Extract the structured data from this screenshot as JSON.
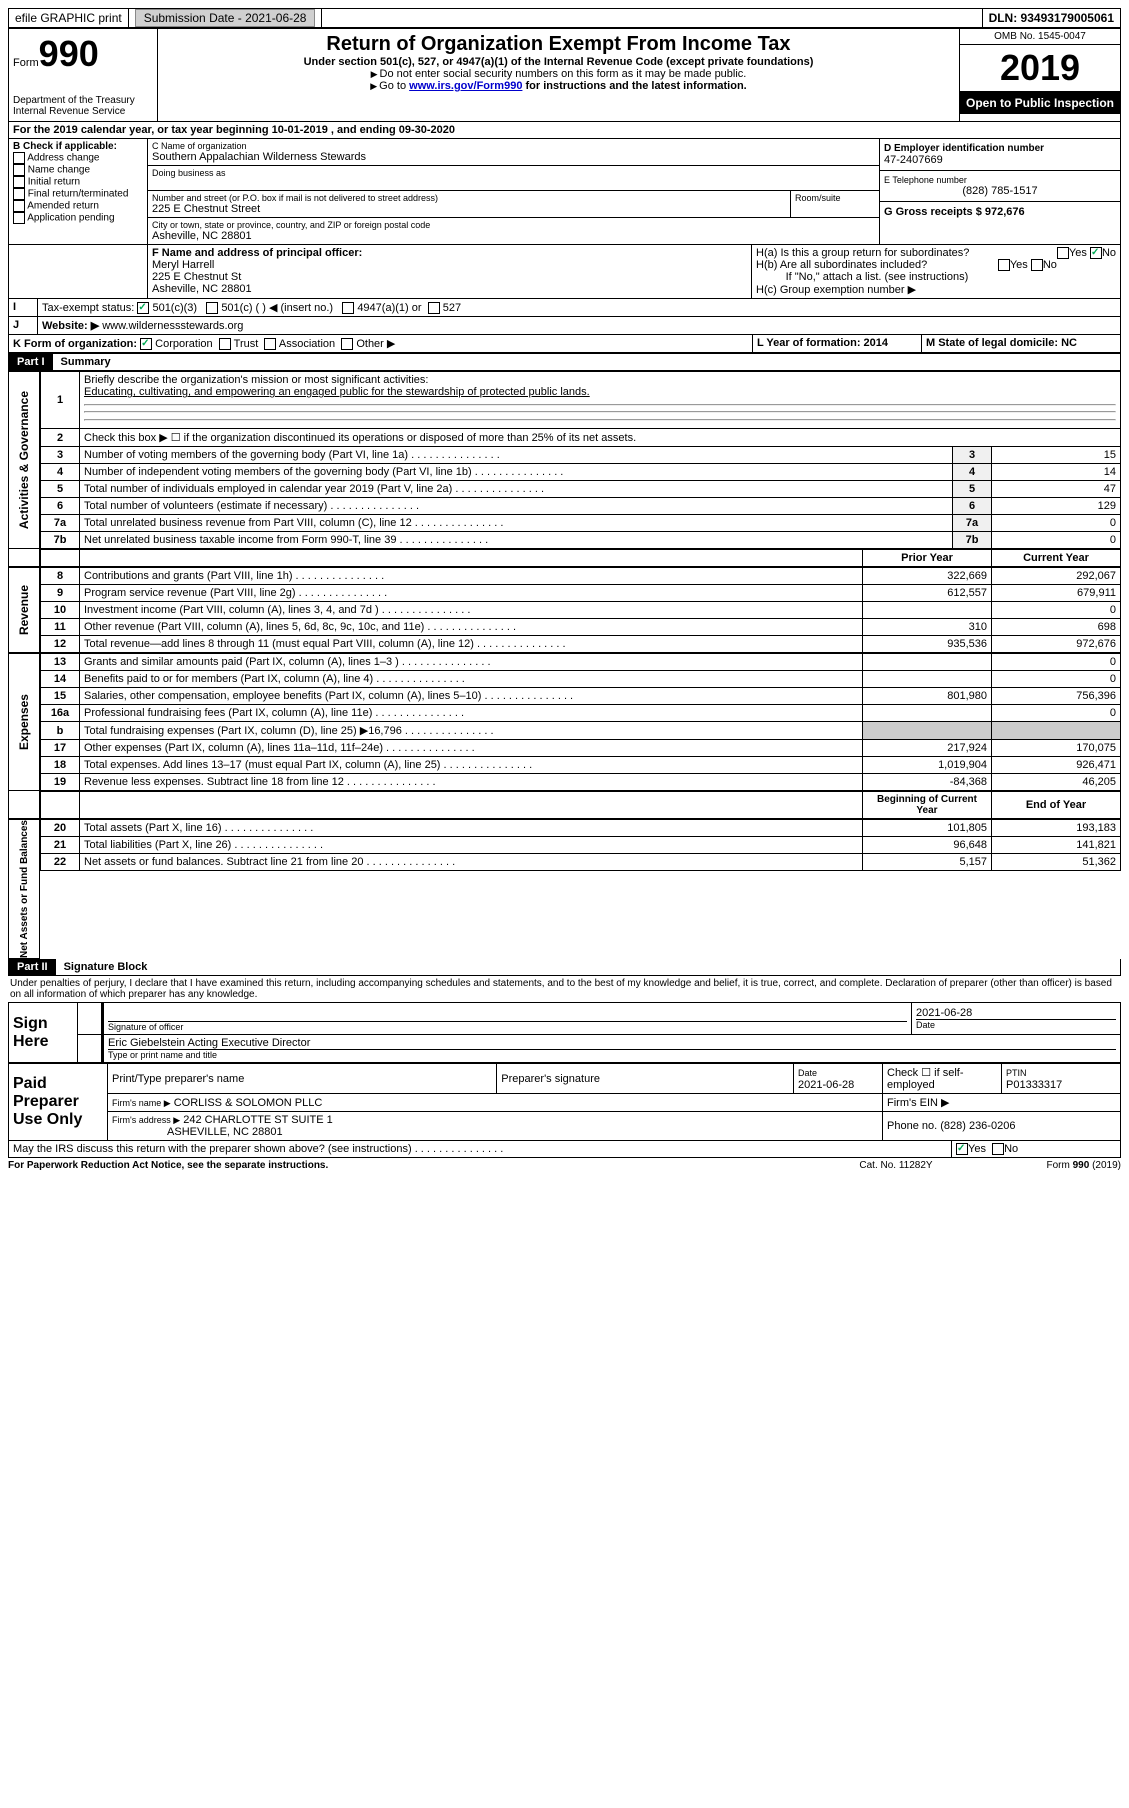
{
  "header": {
    "efile": "efile GRAPHIC print",
    "sub_label": "Submission Date - 2021-06-28",
    "dln": "DLN: 93493179005061"
  },
  "form": {
    "form_word": "Form",
    "num": "990",
    "title": "Return of Organization Exempt From Income Tax",
    "subtitle": "Under section 501(c), 527, or 4947(a)(1) of the Internal Revenue Code (except private foundations)",
    "note1": "Do not enter social security numbers on this form as it may be made public.",
    "note2_pre": "Go to ",
    "note2_link": "www.irs.gov/Form990",
    "note2_post": " for instructions and the latest information.",
    "dept": "Department of the Treasury\nInternal Revenue Service",
    "omb": "OMB No. 1545-0047",
    "year": "2019",
    "open": "Open to Public Inspection"
  },
  "lineA": "For the 2019 calendar year, or tax year beginning 10-01-2019    , and ending 09-30-2020",
  "boxB": {
    "label": "B Check if applicable:",
    "items": [
      "Address change",
      "Name change",
      "Initial return",
      "Final return/terminated",
      "Amended return",
      "Application pending"
    ]
  },
  "boxC": {
    "label": "C Name of organization",
    "name": "Southern Appalachian Wilderness Stewards",
    "dba_label": "Doing business as",
    "addr_label": "Number and street (or P.O. box if mail is not delivered to street address)",
    "room_label": "Room/suite",
    "addr": "225 E Chestnut Street",
    "city_label": "City or town, state or province, country, and ZIP or foreign postal code",
    "city": "Asheville, NC  28801"
  },
  "boxD": {
    "label": "D Employer identification number",
    "val": "47-2407669"
  },
  "boxE": {
    "label": "E Telephone number",
    "val": "(828) 785-1517"
  },
  "boxG": {
    "label": "G Gross receipts $ 972,676"
  },
  "boxF": {
    "label": "F  Name and address of principal officer:",
    "name": "Meryl Harrell",
    "addr1": "225 E Chestnut St",
    "addr2": "Asheville, NC  28801"
  },
  "boxH": {
    "a": "H(a)  Is this a group return for subordinates?",
    "b": "H(b)  Are all subordinates included?",
    "note": "If \"No,\" attach a list. (see instructions)",
    "c": "H(c)  Group exemption number ▶"
  },
  "boxI": {
    "label": "Tax-exempt status:",
    "o1": "501(c)(3)",
    "o2": "501(c) (  ) ◀ (insert no.)",
    "o3": "4947(a)(1) or",
    "o4": "527"
  },
  "boxJ": {
    "label": "Website: ▶",
    "val": "  www.wildernessstewards.org"
  },
  "boxK": {
    "label": "K Form of organization:",
    "o1": "Corporation",
    "o2": "Trust",
    "o3": "Association",
    "o4": "Other ▶"
  },
  "boxL": {
    "label": "L Year of formation: 2014"
  },
  "boxM": {
    "label": "M State of legal domicile: NC"
  },
  "part1": {
    "header": "Part I",
    "title": "Summary",
    "q1": "Briefly describe the organization's mission or most significant activities:",
    "q1a": "Educating, cultivating, and empowering an engaged public for the stewardship of protected public lands.",
    "q2": "Check this box ▶ ☐  if the organization discontinued its operations or disposed of more than 25% of its net assets.",
    "sections": {
      "gov": "Activities & Governance",
      "rev": "Revenue",
      "exp": "Expenses",
      "net": "Net Assets or Fund Balances"
    },
    "col_prior": "Prior Year",
    "col_curr": "Current Year",
    "col_begin": "Beginning of Current Year",
    "col_end": "End of Year",
    "govRows": [
      {
        "n": "3",
        "t": "Number of voting members of the governing body (Part VI, line 1a)",
        "v": "15"
      },
      {
        "n": "4",
        "t": "Number of independent voting members of the governing body (Part VI, line 1b)",
        "v": "14"
      },
      {
        "n": "5",
        "t": "Total number of individuals employed in calendar year 2019 (Part V, line 2a)",
        "v": "47"
      },
      {
        "n": "6",
        "t": "Total number of volunteers (estimate if necessary)",
        "v": "129"
      },
      {
        "n": "7a",
        "t": "Total unrelated business revenue from Part VIII, column (C), line 12",
        "v": "0"
      },
      {
        "n": "7b",
        "t": "Net unrelated business taxable income from Form 990-T, line 39",
        "v": "0"
      }
    ],
    "revRows": [
      {
        "n": "8",
        "t": "Contributions and grants (Part VIII, line 1h)",
        "p": "322,669",
        "c": "292,067"
      },
      {
        "n": "9",
        "t": "Program service revenue (Part VIII, line 2g)",
        "p": "612,557",
        "c": "679,911"
      },
      {
        "n": "10",
        "t": "Investment income (Part VIII, column (A), lines 3, 4, and 7d )",
        "p": "",
        "c": "0"
      },
      {
        "n": "11",
        "t": "Other revenue (Part VIII, column (A), lines 5, 6d, 8c, 9c, 10c, and 11e)",
        "p": "310",
        "c": "698"
      },
      {
        "n": "12",
        "t": "Total revenue—add lines 8 through 11 (must equal Part VIII, column (A), line 12)",
        "p": "935,536",
        "c": "972,676"
      }
    ],
    "expRows": [
      {
        "n": "13",
        "t": "Grants and similar amounts paid (Part IX, column (A), lines 1–3 )",
        "p": "",
        "c": "0"
      },
      {
        "n": "14",
        "t": "Benefits paid to or for members (Part IX, column (A), line 4)",
        "p": "",
        "c": "0"
      },
      {
        "n": "15",
        "t": "Salaries, other compensation, employee benefits (Part IX, column (A), lines 5–10)",
        "p": "801,980",
        "c": "756,396"
      },
      {
        "n": "16a",
        "t": "Professional fundraising fees (Part IX, column (A), line 11e)",
        "p": "",
        "c": "0"
      },
      {
        "n": "b",
        "t": "Total fundraising expenses (Part IX, column (D), line 25) ▶16,796",
        "p": "GREY",
        "c": "GREY"
      },
      {
        "n": "17",
        "t": "Other expenses (Part IX, column (A), lines 11a–11d, 11f–24e)",
        "p": "217,924",
        "c": "170,075"
      },
      {
        "n": "18",
        "t": "Total expenses. Add lines 13–17 (must equal Part IX, column (A), line 25)",
        "p": "1,019,904",
        "c": "926,471"
      },
      {
        "n": "19",
        "t": "Revenue less expenses. Subtract line 18 from line 12",
        "p": "-84,368",
        "c": "46,205"
      }
    ],
    "netRows": [
      {
        "n": "20",
        "t": "Total assets (Part X, line 16)",
        "p": "101,805",
        "c": "193,183"
      },
      {
        "n": "21",
        "t": "Total liabilities (Part X, line 26)",
        "p": "96,648",
        "c": "141,821"
      },
      {
        "n": "22",
        "t": "Net assets or fund balances. Subtract line 21 from line 20",
        "p": "5,157",
        "c": "51,362"
      }
    ]
  },
  "part2": {
    "header": "Part II",
    "title": "Signature Block",
    "decl": "Under penalties of perjury, I declare that I have examined this return, including accompanying schedules and statements, and to the best of my knowledge and belief, it is true, correct, and complete. Declaration of preparer (other than officer) is based on all information of which preparer has any knowledge."
  },
  "sign": {
    "here": "Sign Here",
    "sig_label": "Signature of officer",
    "date": "2021-06-28",
    "date_label": "Date",
    "name": "Eric Giebelstein Acting Executive Director",
    "name_label": "Type or print name and title"
  },
  "paid": {
    "label": "Paid Preparer Use Only",
    "c1": "Print/Type preparer's name",
    "c2": "Preparer's signature",
    "c3": "Date",
    "c3v": "2021-06-28",
    "c4": "Check ☐ if self-employed",
    "c5": "PTIN",
    "c5v": "P01333317",
    "firm_label": "Firm's name    ▶",
    "firm": "CORLISS & SOLOMON PLLC",
    "ein_label": "Firm's EIN ▶",
    "addr_label": "Firm's address ▶",
    "addr1": "242 CHARLOTTE ST SUITE 1",
    "addr2": "ASHEVILLE, NC  28801",
    "phone_label": "Phone no. (828) 236-0206"
  },
  "footer": {
    "q": "May the IRS discuss this return with the preparer shown above? (see instructions)",
    "paperwork": "For Paperwork Reduction Act Notice, see the separate instructions.",
    "cat": "Cat. No. 11282Y",
    "form": "Form 990 (2019)"
  }
}
